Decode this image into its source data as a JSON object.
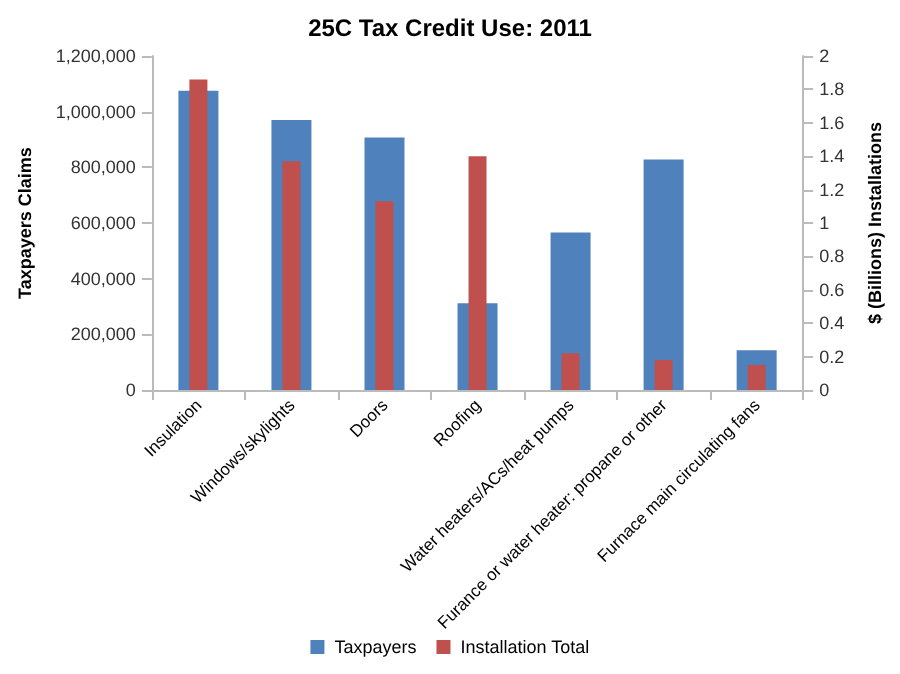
{
  "chart_data": {
    "type": "bar",
    "title": "25C Tax Credit Use: 2011",
    "ylabel": "Taxpayers Claims",
    "y2label": "$ (Billions) Installations",
    "categories": [
      "Insulation",
      "Windows/skylights",
      "Doors",
      "Roofing",
      "Water heaters/ACs/heat pumps",
      "Furance or water heater: propane or other",
      "Furnace main circulating fans"
    ],
    "series": [
      {
        "name": "Taxpayers",
        "color": "#4f81bd",
        "values": [
          1075000,
          970000,
          907000,
          312000,
          566000,
          828000,
          143000
        ]
      },
      {
        "name": "Installation Total",
        "color": "#c0504d",
        "axis": "y2",
        "values": [
          1.86,
          1.37,
          1.13,
          1.4,
          0.22,
          0.18,
          0.15
        ]
      }
    ],
    "ylim": [
      0,
      1200000
    ],
    "yticks": [
      {
        "value": 0,
        "label": "0"
      },
      {
        "value": 200000,
        "label": "200,000"
      },
      {
        "value": 400000,
        "label": "400,000"
      },
      {
        "value": 600000,
        "label": "600,000"
      },
      {
        "value": 800000,
        "label": "800,000"
      },
      {
        "value": 1000000,
        "label": "1,000,000"
      },
      {
        "value": 1200000,
        "label": "1,200,000"
      }
    ],
    "y2lim": [
      0,
      2
    ],
    "y2ticks": [
      0,
      0.2,
      0.4,
      0.6,
      0.8,
      1,
      1.2,
      1.4,
      1.6,
      1.8,
      2
    ],
    "legend": "bottom",
    "grid": false
  }
}
